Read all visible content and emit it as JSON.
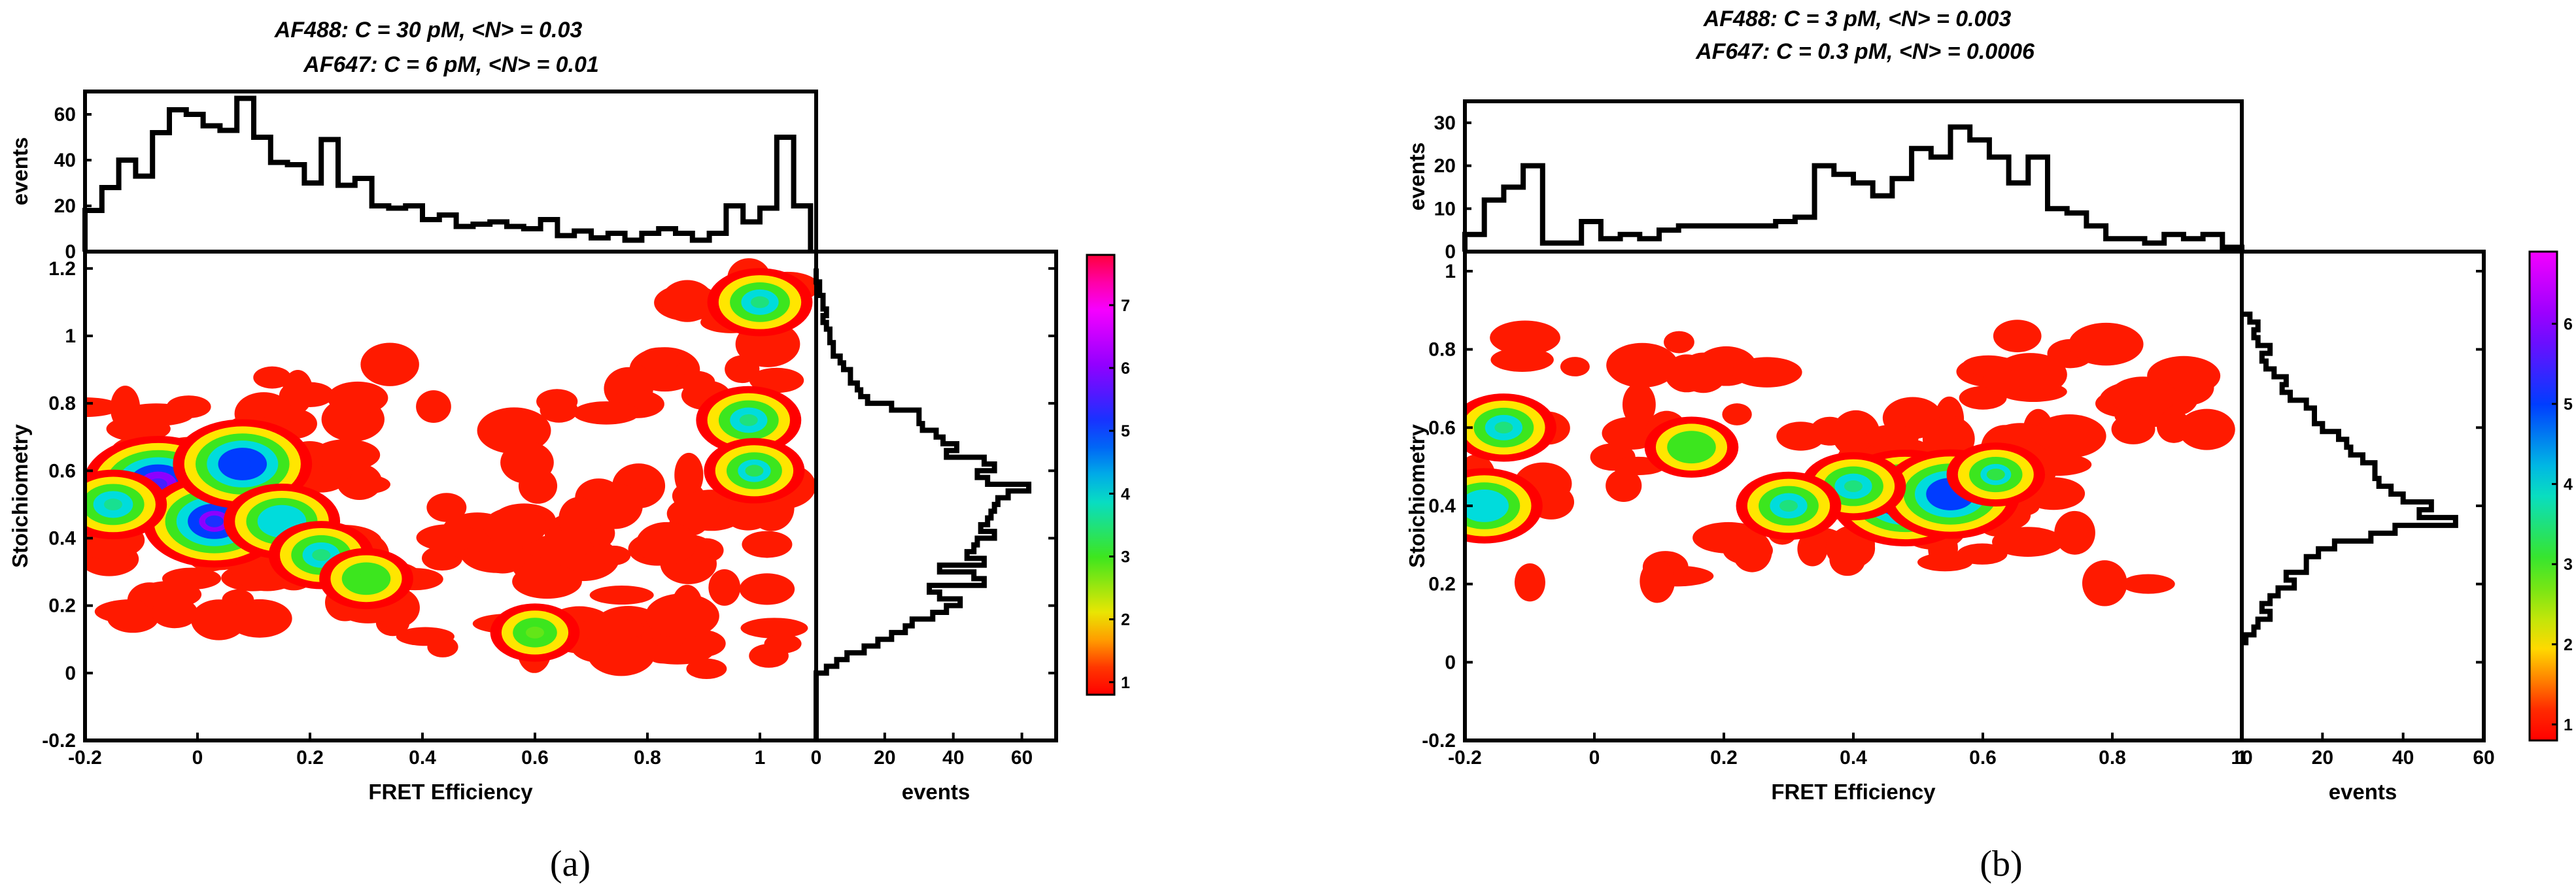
{
  "figure": {
    "panels": [
      {
        "id": "a",
        "panel_label": "(a)",
        "title_lines": [
          "AF488: C = 30 pM, <N> = 0.03",
          "AF647: C = 6 pM, <N> = 0.01"
        ],
        "xlabel": "FRET Efficiency",
        "ylabel": "Stoichiometry",
        "top_hist_ylabel": "events",
        "side_hist_xlabel": "events",
        "colorscale": [
          "#ff0000",
          "#ffa000",
          "#ffff00",
          "#00ff00",
          "#00ffff",
          "#0000ff",
          "#ff00ff",
          "#ff0040"
        ]
      },
      {
        "id": "b",
        "panel_label": "(b)",
        "title_lines": [
          "AF488: C = 3 pM, <N> = 0.003",
          "AF647: C = 0.3 pM, <N> = 0.0006"
        ],
        "xlabel": "FRET Efficiency",
        "ylabel": "Stoichiometry",
        "top_hist_ylabel": "events",
        "side_hist_xlabel": "events",
        "colorscale": [
          "#ff0000",
          "#ffa000",
          "#ffff00",
          "#00ff00",
          "#00ffff",
          "#0000ff",
          "#ff00ff",
          "#ff0040"
        ]
      }
    ]
  },
  "chart_data": [
    {
      "panel": "a",
      "type": "heatmap",
      "title": "AF488: C = 30 pM, <N> = 0.03 / AF647: C = 6 pM, <N> = 0.01",
      "xlabel": "FRET Efficiency",
      "ylabel": "Stoichiometry",
      "xlim": [
        -0.2,
        1.1
      ],
      "ylim": [
        -0.2,
        1.25
      ],
      "xticks": [
        "-0.2",
        "0",
        "0.2",
        "0.4",
        "0.6",
        "0.8",
        "1"
      ],
      "yticks": [
        "-0.2",
        "0",
        "0.2",
        "0.4",
        "0.6",
        "0.8",
        "1",
        "1.2"
      ],
      "colorbar": {
        "range": [
          0.8,
          7.8
        ],
        "ticks": [
          "1",
          "2",
          "3",
          "4",
          "5",
          "6",
          "7"
        ]
      },
      "density_peaks": [
        {
          "E": -0.07,
          "S": 0.56,
          "level": 5.5
        },
        {
          "E": 0.03,
          "S": 0.45,
          "level": 5.2
        },
        {
          "E": 0.08,
          "S": 0.62,
          "level": 5.0
        },
        {
          "E": 0.15,
          "S": 0.45,
          "level": 4.0
        },
        {
          "E": -0.15,
          "S": 0.5,
          "level": 3.6
        },
        {
          "E": 0.22,
          "S": 0.35,
          "level": 3.5
        },
        {
          "E": 0.3,
          "S": 0.28,
          "level": 3.0
        },
        {
          "E": 0.6,
          "S": 0.12,
          "level": 2.8
        },
        {
          "E": 1.0,
          "S": 1.1,
          "level": 3.5
        },
        {
          "E": 0.98,
          "S": 0.75,
          "level": 3.5
        },
        {
          "E": 0.99,
          "S": 0.6,
          "level": 3.3
        }
      ],
      "top_histogram": {
        "ylabel": "events",
        "ylim": [
          0,
          70
        ],
        "yticks": [
          "0",
          "20",
          "40",
          "60"
        ],
        "bin_edges": [
          -0.2,
          -0.17,
          -0.14,
          -0.11,
          -0.08,
          -0.05,
          -0.02,
          0.01,
          0.04,
          0.07,
          0.1,
          0.13,
          0.16,
          0.19,
          0.22,
          0.25,
          0.28,
          0.31,
          0.34,
          0.37,
          0.4,
          0.43,
          0.46,
          0.49,
          0.52,
          0.55,
          0.58,
          0.61,
          0.64,
          0.67,
          0.7,
          0.73,
          0.76,
          0.79,
          0.82,
          0.85,
          0.88,
          0.91,
          0.94,
          0.97,
          1.0,
          1.03,
          1.06,
          1.09
        ],
        "counts": [
          18,
          28,
          40,
          33,
          52,
          62,
          60,
          55,
          53,
          67,
          50,
          39,
          38,
          30,
          49,
          29,
          32,
          20,
          19,
          20,
          14,
          16,
          11,
          12,
          13,
          11,
          10,
          14,
          7,
          9,
          6,
          8,
          5,
          8,
          10,
          8,
          5,
          8,
          20,
          13,
          19,
          50,
          20
        ]
      },
      "side_histogram": {
        "xlabel": "events",
        "xlim": [
          0,
          70
        ],
        "xticks": [
          "0",
          "20",
          "40",
          "60"
        ],
        "bin_edges": [
          -0.2,
          -0.18,
          -0.16,
          -0.14,
          -0.12,
          -0.1,
          -0.08,
          -0.06,
          -0.04,
          -0.02,
          0.0,
          0.02,
          0.04,
          0.06,
          0.08,
          0.1,
          0.12,
          0.14,
          0.16,
          0.18,
          0.2,
          0.22,
          0.24,
          0.26,
          0.28,
          0.3,
          0.32,
          0.34,
          0.36,
          0.38,
          0.4,
          0.42,
          0.44,
          0.46,
          0.48,
          0.5,
          0.52,
          0.54,
          0.56,
          0.58,
          0.6,
          0.62,
          0.64,
          0.66,
          0.68,
          0.7,
          0.72,
          0.74,
          0.76,
          0.78,
          0.8,
          0.82,
          0.84,
          0.86,
          0.88,
          0.9,
          0.92,
          0.94,
          0.96,
          0.98,
          1.0,
          1.02,
          1.04,
          1.06,
          1.08,
          1.1,
          1.12,
          1.14,
          1.16,
          1.18,
          1.2
        ],
        "counts": [
          0,
          0,
          0,
          0,
          0,
          0,
          0,
          0,
          0,
          0,
          3,
          6,
          9,
          14,
          18,
          22,
          26,
          28,
          34,
          38,
          42,
          36,
          33,
          49,
          46,
          36,
          49,
          44,
          46,
          47,
          52,
          48,
          50,
          51,
          52,
          53,
          56,
          62,
          50,
          47,
          52,
          49,
          38,
          41,
          37,
          35,
          31,
          30,
          30,
          22,
          15,
          13,
          12,
          10,
          10,
          8,
          7,
          5,
          5,
          4,
          4,
          3,
          2,
          3,
          2,
          2,
          1,
          1,
          0,
          0
        ]
      }
    },
    {
      "panel": "b",
      "type": "heatmap",
      "title": "AF488: C = 3 pM, <N> = 0.003 / AF647: C = 0.3 pM, <N> = 0.0006",
      "xlabel": "FRET Efficiency",
      "ylabel": "Stoichiometry",
      "xlim": [
        -0.2,
        1.0
      ],
      "ylim": [
        -0.2,
        1.05
      ],
      "xticks": [
        "-0.2",
        "0",
        "0.2",
        "0.4",
        "0.6",
        "0.8",
        "1"
      ],
      "yticks": [
        "-0.2",
        "0",
        "0.2",
        "0.4",
        "0.6",
        "0.8",
        "1"
      ],
      "colorbar": {
        "range": [
          0.8,
          6.9
        ],
        "ticks": [
          "1",
          "2",
          "3",
          "4",
          "5",
          "6"
        ]
      },
      "density_peaks": [
        {
          "E": 0.48,
          "S": 0.42,
          "level": 5.5
        },
        {
          "E": 0.55,
          "S": 0.43,
          "level": 5.0
        },
        {
          "E": 0.4,
          "S": 0.45,
          "level": 3.5
        },
        {
          "E": 0.62,
          "S": 0.48,
          "level": 3.2
        },
        {
          "E": -0.17,
          "S": 0.4,
          "level": 4.0
        },
        {
          "E": -0.14,
          "S": 0.6,
          "level": 3.5
        },
        {
          "E": 0.3,
          "S": 0.4,
          "level": 3.5
        },
        {
          "E": 0.15,
          "S": 0.55,
          "level": 3.0
        }
      ],
      "top_histogram": {
        "ylabel": "events",
        "ylim": [
          0,
          35
        ],
        "yticks": [
          "0",
          "10",
          "20",
          "30"
        ],
        "bin_edges": [
          -0.2,
          -0.17,
          -0.14,
          -0.11,
          -0.08,
          -0.05,
          -0.02,
          0.01,
          0.04,
          0.07,
          0.1,
          0.13,
          0.16,
          0.19,
          0.22,
          0.25,
          0.28,
          0.31,
          0.34,
          0.37,
          0.4,
          0.43,
          0.46,
          0.49,
          0.52,
          0.55,
          0.58,
          0.61,
          0.64,
          0.67,
          0.7,
          0.73,
          0.76,
          0.79,
          0.82,
          0.85,
          0.88,
          0.91,
          0.94,
          0.97,
          1.0
        ],
        "counts": [
          4,
          12,
          15,
          20,
          2,
          2,
          7,
          3,
          4,
          3,
          5,
          6,
          6,
          6,
          6,
          6,
          7,
          8,
          20,
          18,
          16,
          13,
          17,
          24,
          22,
          29,
          26,
          22,
          16,
          22,
          10,
          9,
          6,
          3,
          3,
          2,
          4,
          3,
          4,
          1
        ]
      },
      "side_histogram": {
        "xlabel": "events",
        "xlim": [
          0,
          60
        ],
        "xticks": [
          "10",
          "20",
          "40",
          "60"
        ],
        "bin_edges": [
          0.05,
          0.07,
          0.09,
          0.11,
          0.13,
          0.15,
          0.17,
          0.19,
          0.21,
          0.23,
          0.25,
          0.27,
          0.29,
          0.31,
          0.33,
          0.35,
          0.37,
          0.39,
          0.41,
          0.43,
          0.45,
          0.47,
          0.49,
          0.51,
          0.53,
          0.55,
          0.57,
          0.59,
          0.61,
          0.63,
          0.65,
          0.67,
          0.69,
          0.71,
          0.73,
          0.75,
          0.77,
          0.79,
          0.81,
          0.83,
          0.85,
          0.87,
          0.89
        ],
        "counts": [
          1,
          3,
          4,
          7,
          5,
          7,
          9,
          13,
          11,
          16,
          16,
          19,
          23,
          32,
          38,
          53,
          44,
          47,
          40,
          37,
          34,
          33,
          33,
          30,
          27,
          26,
          24,
          20,
          18,
          18,
          16,
          12,
          10,
          11,
          8,
          6,
          5,
          7,
          4,
          3,
          4,
          2
        ]
      }
    }
  ]
}
